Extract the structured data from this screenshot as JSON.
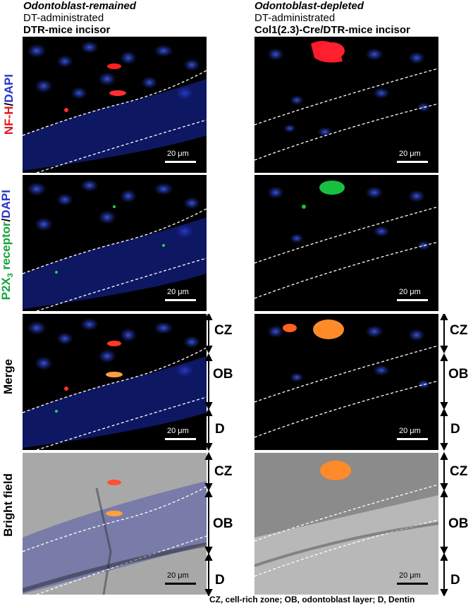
{
  "columns": [
    {
      "title": "Odontoblast-remained",
      "line2": "DT-administrated",
      "line3": "DTR-mice incisor"
    },
    {
      "title": "Odontoblast-depleted",
      "line2": "DT-administrated",
      "line3": "Col1(2.3)-Cre/DTR-mice incisor"
    }
  ],
  "rows": {
    "nfh": {
      "red": "NF-H",
      "sep": "/",
      "blue": "DAPI"
    },
    "p2x": {
      "green_a": "P2X",
      "sub": "3",
      "green_b": " receptor",
      "sep": "/",
      "blue": "DAPI"
    },
    "merge": "Merge",
    "bright": "Bright field"
  },
  "scale_bar": "20 μm",
  "zones": {
    "cz": "CZ",
    "ob": "OB",
    "d": "D"
  },
  "footer": "CZ, cell-rich zone; OB, odontoblast layer; D, Dentin",
  "colors": {
    "red": "#e8141c",
    "green": "#14a33c",
    "blue": "#2a36c8"
  }
}
